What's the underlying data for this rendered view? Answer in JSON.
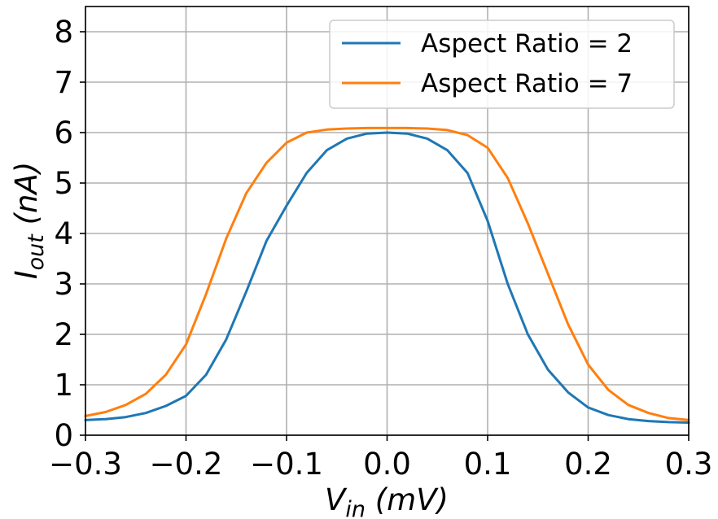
{
  "chart_data": {
    "type": "line",
    "xlabel": {
      "main": "V",
      "sub": "in",
      "unit": " (mV)"
    },
    "ylabel": {
      "main": "I",
      "sub": "out",
      "unit": " (nA)"
    },
    "xlim": [
      -0.3,
      0.3
    ],
    "ylim": [
      0,
      8.5
    ],
    "x_ticks": [
      "−0.3",
      "−0.2",
      "−0.1",
      "0.0",
      "0.1",
      "0.2",
      "0.3"
    ],
    "x_tick_values": [
      -0.3,
      -0.2,
      -0.1,
      0.0,
      0.1,
      0.2,
      0.3
    ],
    "y_ticks": [
      "0",
      "1",
      "2",
      "3",
      "4",
      "5",
      "6",
      "7",
      "8"
    ],
    "y_tick_values": [
      0,
      1,
      2,
      3,
      4,
      5,
      6,
      7,
      8
    ],
    "grid": true,
    "legend_position": "top-right",
    "series": [
      {
        "name": "Aspect Ratio = 2",
        "color": "#1f77b4",
        "x": [
          -0.3,
          -0.28,
          -0.26,
          -0.24,
          -0.22,
          -0.2,
          -0.18,
          -0.16,
          -0.14,
          -0.12,
          -0.1,
          -0.08,
          -0.06,
          -0.04,
          -0.02,
          0.0,
          0.02,
          0.04,
          0.06,
          0.08,
          0.1,
          0.12,
          0.14,
          0.16,
          0.18,
          0.2,
          0.22,
          0.24,
          0.26,
          0.28,
          0.3
        ],
        "y": [
          0.3,
          0.32,
          0.36,
          0.44,
          0.58,
          0.78,
          1.2,
          1.9,
          2.85,
          3.85,
          4.55,
          5.2,
          5.65,
          5.88,
          5.98,
          6.0,
          5.98,
          5.88,
          5.65,
          5.2,
          4.25,
          3.0,
          2.0,
          1.3,
          0.85,
          0.55,
          0.4,
          0.32,
          0.28,
          0.26,
          0.25
        ]
      },
      {
        "name": "Aspect Ratio = 7",
        "color": "#ff7f0e",
        "x": [
          -0.3,
          -0.28,
          -0.26,
          -0.24,
          -0.22,
          -0.2,
          -0.18,
          -0.16,
          -0.14,
          -0.12,
          -0.1,
          -0.08,
          -0.06,
          -0.04,
          -0.02,
          0.0,
          0.02,
          0.04,
          0.06,
          0.08,
          0.1,
          0.12,
          0.14,
          0.16,
          0.18,
          0.2,
          0.22,
          0.24,
          0.26,
          0.28,
          0.3
        ],
        "y": [
          0.38,
          0.46,
          0.6,
          0.82,
          1.2,
          1.8,
          2.8,
          3.9,
          4.8,
          5.4,
          5.8,
          6.0,
          6.06,
          6.08,
          6.09,
          6.09,
          6.09,
          6.08,
          6.05,
          5.95,
          5.7,
          5.1,
          4.2,
          3.2,
          2.2,
          1.4,
          0.9,
          0.6,
          0.44,
          0.34,
          0.3
        ]
      }
    ]
  }
}
